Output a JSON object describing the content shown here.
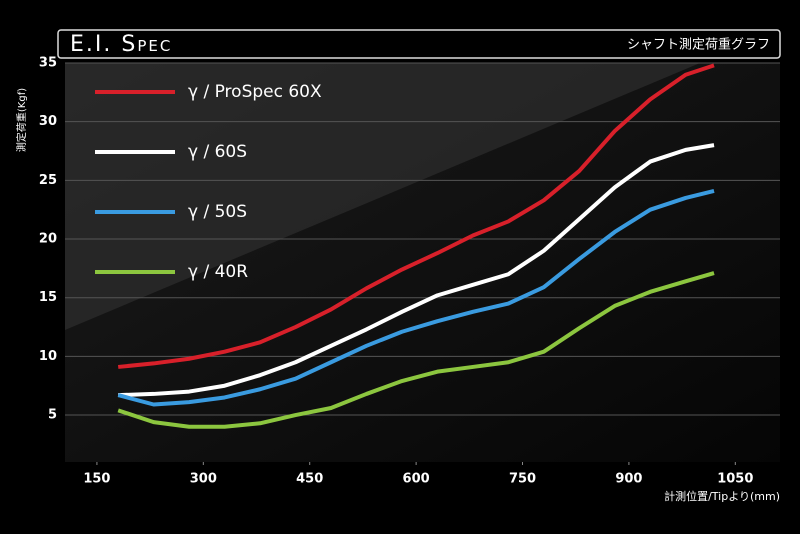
{
  "chart_data": {
    "type": "line",
    "title": "E.I. Spec",
    "subtitle": "シャフト測定荷重グラフ",
    "ylabel": "測定荷重(Kgf)",
    "xlabel": "計測位置/Tipより(mm)",
    "x": [
      180,
      230,
      280,
      330,
      380,
      430,
      480,
      530,
      580,
      630,
      680,
      730,
      780,
      830,
      880,
      930,
      980,
      1020
    ],
    "series": [
      {
        "name": "γ / ProSpec 60X",
        "color": "#d8202a",
        "values": [
          9.1,
          9.4,
          9.8,
          10.4,
          11.2,
          12.5,
          14.0,
          15.8,
          17.4,
          18.8,
          20.3,
          21.5,
          23.3,
          25.8,
          29.2,
          31.9,
          34.0,
          34.8
        ]
      },
      {
        "name": "γ / 60S",
        "color": "#ffffff",
        "values": [
          6.7,
          6.8,
          7.0,
          7.5,
          8.4,
          9.5,
          10.9,
          12.3,
          13.8,
          15.2,
          16.1,
          17.0,
          19.0,
          21.7,
          24.4,
          26.6,
          27.6,
          28.0
        ]
      },
      {
        "name": "γ / 50S",
        "color": "#3a9be0",
        "values": [
          6.7,
          5.9,
          6.1,
          6.5,
          7.2,
          8.1,
          9.5,
          10.9,
          12.1,
          13.0,
          13.8,
          14.5,
          15.9,
          18.3,
          20.6,
          22.5,
          23.5,
          24.1
        ]
      },
      {
        "name": "γ / 40R",
        "color": "#8cc63f",
        "values": [
          5.4,
          4.4,
          4.0,
          4.0,
          4.3,
          5.0,
          5.6,
          6.8,
          7.9,
          8.7,
          9.1,
          9.5,
          10.4,
          12.4,
          14.3,
          15.5,
          16.4,
          17.1
        ]
      }
    ],
    "xlim": [
      105,
      1113
    ],
    "ylim": [
      1,
      35
    ],
    "xticks": [
      150,
      300,
      450,
      600,
      750,
      900,
      1050
    ],
    "yticks": [
      5,
      10,
      15,
      20,
      25,
      30,
      35
    ],
    "grid": true,
    "legend": "upper left"
  }
}
